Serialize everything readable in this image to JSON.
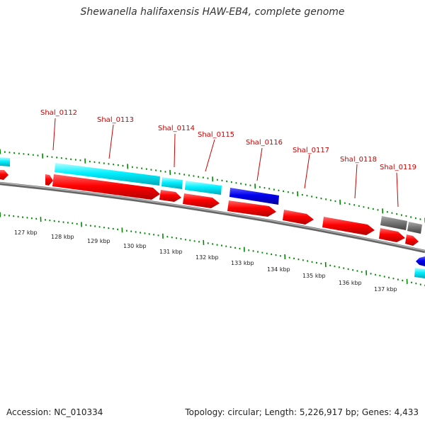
{
  "title": "Shewanella halifaxensis HAW-EB4, complete genome",
  "footer": {
    "accession": "Accession: NC_010334",
    "topology": "Topology: circular; Length: 5,226,917 bp; Genes: 4,433"
  },
  "colors": {
    "cds": "#ff0000",
    "rna": "#00ffff",
    "other": "#0000dd",
    "pseudo": "#777777",
    "tick": "#008800",
    "label": "#cc0000",
    "backbone": "#888888"
  },
  "gene_labels": [
    "Shal_0112",
    "Shal_0113",
    "Shal_0114",
    "Shal_0115",
    "Shal_0116",
    "Shal_0117",
    "Shal_0118",
    "Shal_0119"
  ],
  "kbp_labels": [
    "127 kbp",
    "128 kbp",
    "129 kbp",
    "130 kbp",
    "131 kbp",
    "132 kbp",
    "133 kbp",
    "134 kbp",
    "135 kbp",
    "136 kbp",
    "137 kbp"
  ]
}
